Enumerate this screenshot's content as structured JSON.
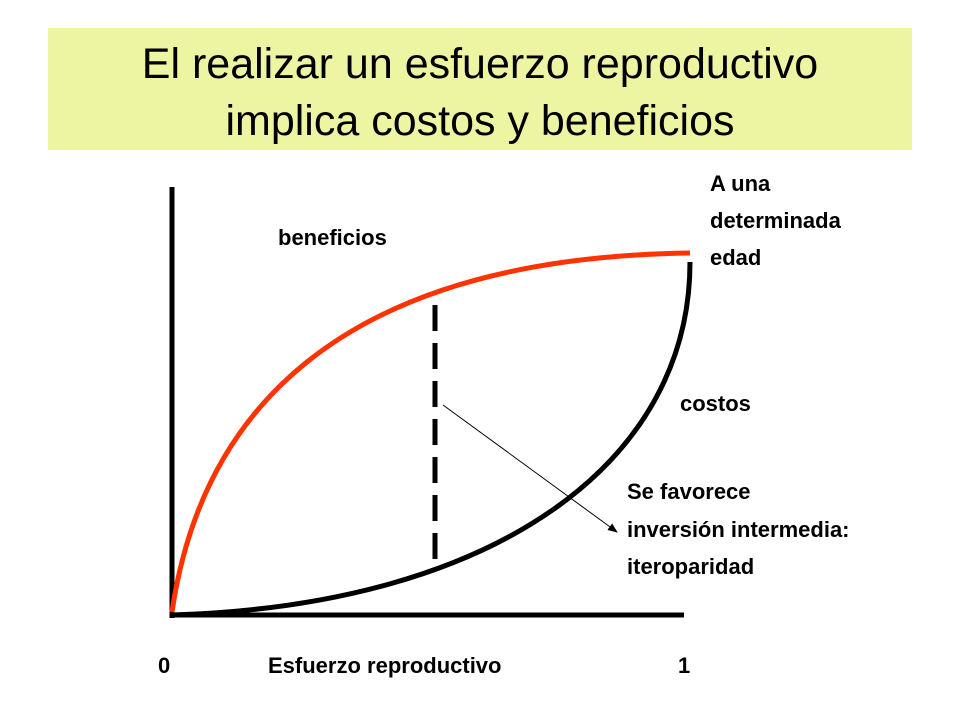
{
  "title": {
    "lines": [
      "El realizar un esfuerzo reproductivo",
      "implica costos y beneficios"
    ]
  },
  "diagram": {
    "curve_labels": {
      "benefits": "beneficios",
      "costs": "costos"
    },
    "endpoint_note": [
      "A una",
      "determinada",
      "edad"
    ],
    "annotation": [
      "Se favorece",
      "inversión intermedia:",
      "iteroparidad"
    ],
    "x_axis": {
      "start": "0",
      "label": "Esfuerzo reproductivo",
      "end": "1"
    }
  }
}
